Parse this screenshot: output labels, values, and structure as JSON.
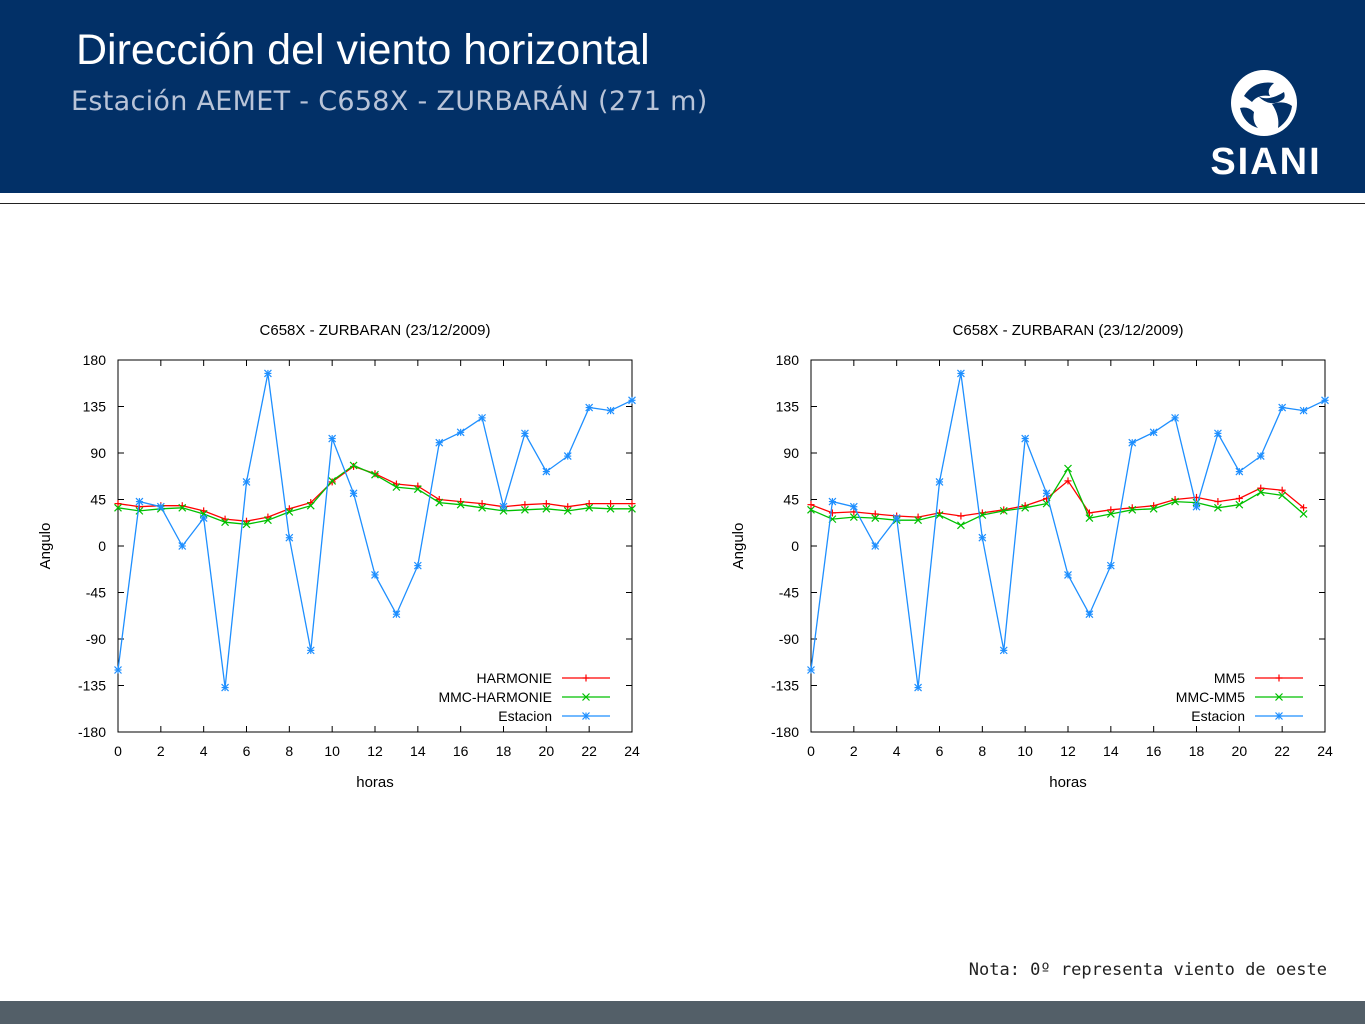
{
  "header": {
    "title": "Dirección del viento horizontal",
    "subtitle": "Estación AEMET - C658X - ZURBARÁN (271 m)",
    "logo_text": "SIANI"
  },
  "note": "Nota: 0º representa viento de oeste",
  "colors": {
    "header_bg": "#023067",
    "footer_bg": "#535f68",
    "series_red": "#ff0000",
    "series_green": "#00c000",
    "series_blue": "#1e8fff"
  },
  "chart_data": [
    {
      "type": "line",
      "title": "C658X - ZURBARAN (23/12/2009)",
      "xlabel": "horas",
      "ylabel": "Angulo",
      "xlim": [
        0,
        24
      ],
      "ylim": [
        -180,
        180
      ],
      "xticks": [
        0,
        2,
        4,
        6,
        8,
        10,
        12,
        14,
        16,
        18,
        20,
        22,
        24
      ],
      "yticks": [
        -180,
        -135,
        -90,
        -45,
        0,
        45,
        90,
        135,
        180
      ],
      "legend_position": "bottom-right",
      "series": [
        {
          "name": "HARMONIE",
          "marker": "+",
          "color": "#ff0000",
          "x": [
            0,
            1,
            2,
            3,
            4,
            5,
            6,
            7,
            8,
            9,
            10,
            11,
            12,
            13,
            14,
            15,
            16,
            17,
            18,
            19,
            20,
            21,
            22,
            23,
            24
          ],
          "y": [
            41,
            38,
            39,
            39,
            34,
            26,
            24,
            28,
            36,
            42,
            62,
            77,
            70,
            60,
            58,
            45,
            43,
            41,
            38,
            40,
            41,
            38,
            41,
            41,
            41
          ]
        },
        {
          "name": "MMC-HARMONIE",
          "marker": "x",
          "color": "#00c000",
          "x": [
            0,
            1,
            2,
            3,
            4,
            5,
            6,
            7,
            8,
            9,
            10,
            11,
            12,
            13,
            14,
            15,
            16,
            17,
            18,
            19,
            20,
            21,
            22,
            23,
            24
          ],
          "y": [
            37,
            34,
            36,
            37,
            31,
            23,
            21,
            25,
            33,
            39,
            63,
            78,
            69,
            57,
            55,
            42,
            40,
            37,
            34,
            35,
            36,
            34,
            37,
            36,
            36
          ]
        },
        {
          "name": "Estacion",
          "marker": "*",
          "color": "#1e8fff",
          "x": [
            0,
            1,
            2,
            3,
            4,
            5,
            6,
            7,
            8,
            9,
            10,
            11,
            12,
            13,
            14,
            15,
            16,
            17,
            18,
            19,
            20,
            21,
            22,
            23,
            24
          ],
          "y": [
            -120,
            43,
            38,
            0,
            27,
            -137,
            62,
            167,
            8,
            -101,
            104,
            51,
            -28,
            -66,
            -19,
            100,
            110,
            124,
            38,
            109,
            72,
            87,
            134,
            131,
            141
          ]
        }
      ]
    },
    {
      "type": "line",
      "title": "C658X - ZURBARAN (23/12/2009)",
      "xlabel": "horas",
      "ylabel": "Angulo",
      "xlim": [
        0,
        24
      ],
      "ylim": [
        -180,
        180
      ],
      "xticks": [
        0,
        2,
        4,
        6,
        8,
        10,
        12,
        14,
        16,
        18,
        20,
        22,
        24
      ],
      "yticks": [
        -180,
        -135,
        -90,
        -45,
        0,
        45,
        90,
        135,
        180
      ],
      "legend_position": "bottom-right",
      "series": [
        {
          "name": "MM5",
          "marker": "+",
          "color": "#ff0000",
          "x": [
            0,
            1,
            2,
            3,
            4,
            5,
            6,
            7,
            8,
            9,
            10,
            11,
            12,
            13,
            14,
            15,
            16,
            17,
            18,
            19,
            20,
            21,
            22,
            23
          ],
          "y": [
            40,
            32,
            33,
            31,
            29,
            28,
            32,
            29,
            32,
            35,
            39,
            46,
            63,
            32,
            35,
            37,
            39,
            45,
            47,
            43,
            46,
            56,
            54,
            37
          ]
        },
        {
          "name": "MMC-MM5",
          "marker": "x",
          "color": "#00c000",
          "x": [
            0,
            1,
            2,
            3,
            4,
            5,
            6,
            7,
            8,
            9,
            10,
            11,
            12,
            13,
            14,
            15,
            16,
            17,
            18,
            19,
            20,
            21,
            22,
            23
          ],
          "y": [
            35,
            26,
            28,
            27,
            25,
            25,
            30,
            20,
            30,
            34,
            37,
            41,
            75,
            27,
            31,
            35,
            36,
            43,
            42,
            37,
            40,
            52,
            49,
            31
          ]
        },
        {
          "name": "Estacion",
          "marker": "*",
          "color": "#1e8fff",
          "x": [
            0,
            1,
            2,
            3,
            4,
            5,
            6,
            7,
            8,
            9,
            10,
            11,
            12,
            13,
            14,
            15,
            16,
            17,
            18,
            19,
            20,
            21,
            22,
            23,
            24
          ],
          "y": [
            -120,
            43,
            38,
            0,
            27,
            -137,
            62,
            167,
            8,
            -101,
            104,
            51,
            -28,
            -66,
            -19,
            100,
            110,
            124,
            38,
            109,
            72,
            87,
            134,
            131,
            141
          ]
        }
      ]
    }
  ]
}
